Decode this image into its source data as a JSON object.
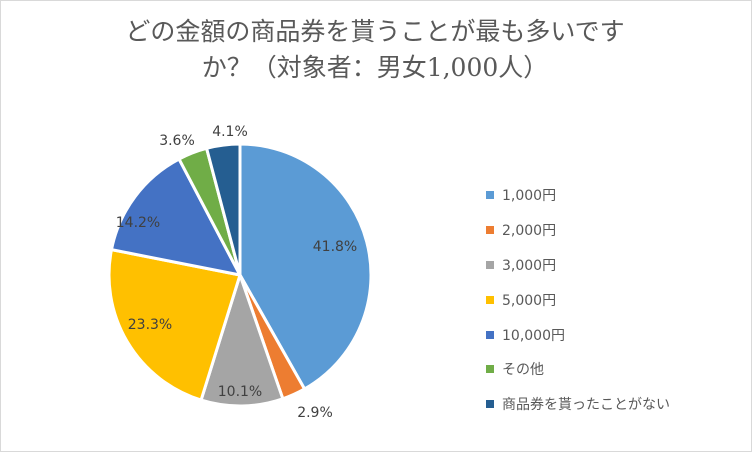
{
  "chart_data": {
    "type": "pie",
    "title": "どの金額の商品券を貰うことが最も多いですか？（対象者：男女1,000人）",
    "title_lines": [
      "どの金額の商品券を貰うことが最も多いです",
      "か？（対象者：男女1,000人）"
    ],
    "categories": [
      "1,000円",
      "2,000円",
      "3,000円",
      "5,000円",
      "10,000円",
      "その他",
      "商品券を貰ったことがない"
    ],
    "values": [
      41.8,
      2.9,
      10.1,
      23.3,
      14.2,
      3.6,
      4.1
    ],
    "data_labels": [
      "41.8%",
      "2.9%",
      "10.1%",
      "23.3%",
      "14.2%",
      "3.6%",
      "4.1%"
    ],
    "colors": [
      "#5b9bd5",
      "#ed7d31",
      "#a5a5a5",
      "#ffc000",
      "#4472c4",
      "#70ad47",
      "#255e91"
    ],
    "legend_position": "right",
    "start_angle_deg": 0,
    "direction": "clockwise"
  }
}
